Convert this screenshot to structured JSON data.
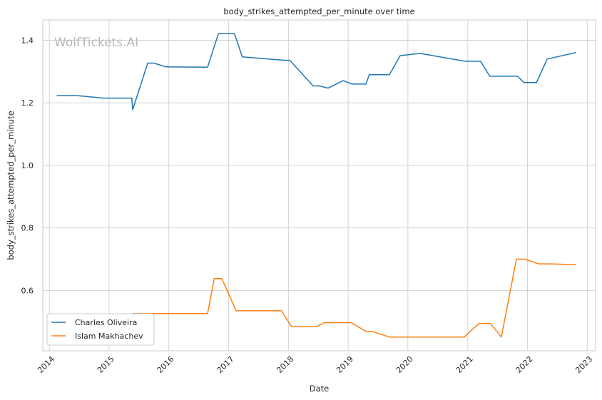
{
  "watermark": "WolfTickets.AI",
  "colors": {
    "series_1": "#1f77b4",
    "series_2": "#ff7f0e",
    "grid": "#d3d3d3",
    "frame": "#cccccc"
  },
  "chart_data": {
    "type": "line",
    "title": "body_strikes_attempted_per_minute over time",
    "xlabel": "Date",
    "ylabel": "body_strikes_attempted_per_minute",
    "x_ticks": [
      "2014",
      "2015",
      "2016",
      "2017",
      "2018",
      "2019",
      "2020",
      "2021",
      "2022",
      "2023"
    ],
    "y_ticks": [
      "0.6",
      "0.8",
      "1.0",
      "1.2",
      "1.4"
    ],
    "xlim": [
      "2013-11-22",
      "2023-02-21"
    ],
    "ylim": [
      0.407,
      1.465
    ],
    "grid": true,
    "legend": "lower-left",
    "series": [
      {
        "name": "Charles Oliveira",
        "points": [
          [
            "2014-02-15",
            1.223
          ],
          [
            "2014-06-20",
            1.223
          ],
          [
            "2014-12-01",
            1.215
          ],
          [
            "2015-05-20",
            1.215
          ],
          [
            "2015-05-25",
            1.178
          ],
          [
            "2015-08-25",
            1.327
          ],
          [
            "2015-10-01",
            1.327
          ],
          [
            "2015-12-15",
            1.315
          ],
          [
            "2016-08-25",
            1.314
          ],
          [
            "2016-10-30",
            1.421
          ],
          [
            "2017-02-05",
            1.421
          ],
          [
            "2017-03-25",
            1.347
          ],
          [
            "2017-12-10",
            1.336
          ],
          [
            "2018-01-10",
            1.336
          ],
          [
            "2018-06-01",
            1.254
          ],
          [
            "2018-07-10",
            1.254
          ],
          [
            "2018-09-01",
            1.247
          ],
          [
            "2018-12-01",
            1.271
          ],
          [
            "2019-01-25",
            1.26
          ],
          [
            "2019-04-20",
            1.26
          ],
          [
            "2019-05-10",
            1.29
          ],
          [
            "2019-09-10",
            1.29
          ],
          [
            "2019-11-15",
            1.351
          ],
          [
            "2020-03-15",
            1.358
          ],
          [
            "2020-12-15",
            1.333
          ],
          [
            "2021-03-20",
            1.333
          ],
          [
            "2021-05-15",
            1.285
          ],
          [
            "2021-11-01",
            1.285
          ],
          [
            "2021-12-10",
            1.265
          ],
          [
            "2022-02-25",
            1.265
          ],
          [
            "2022-05-01",
            1.34
          ],
          [
            "2022-10-25",
            1.361
          ]
        ]
      },
      {
        "name": "Islam Makhachev",
        "points": [
          [
            "2015-05-25",
            0.526
          ],
          [
            "2016-08-25",
            0.526
          ],
          [
            "2016-10-05",
            0.638
          ],
          [
            "2016-11-20",
            0.638
          ],
          [
            "2017-02-15",
            0.535
          ],
          [
            "2017-11-20",
            0.535
          ],
          [
            "2018-01-20",
            0.484
          ],
          [
            "2018-06-20",
            0.484
          ],
          [
            "2018-08-10",
            0.497
          ],
          [
            "2019-01-20",
            0.497
          ],
          [
            "2019-04-20",
            0.469
          ],
          [
            "2019-06-01",
            0.468
          ],
          [
            "2019-09-10",
            0.451
          ],
          [
            "2020-12-10",
            0.451
          ],
          [
            "2021-03-10",
            0.494
          ],
          [
            "2021-05-20",
            0.494
          ],
          [
            "2021-07-25",
            0.451
          ],
          [
            "2021-10-25",
            0.7
          ],
          [
            "2021-12-15",
            0.7
          ],
          [
            "2022-03-10",
            0.685
          ],
          [
            "2022-06-01",
            0.685
          ],
          [
            "2022-10-25",
            0.682
          ]
        ]
      }
    ]
  }
}
